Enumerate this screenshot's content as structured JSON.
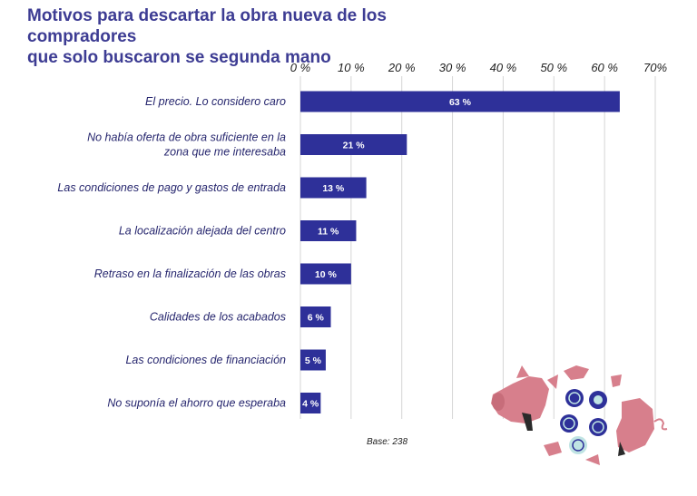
{
  "title_lines": [
    "Motivos para descartar la obra nueva de los compradores",
    "que solo buscaron se segunda mano"
  ],
  "footnote": "Base: 238",
  "colors": {
    "bar": "#2e3099",
    "title": "#3d3c93",
    "grid": "#d6d6d6",
    "illustration": "#d77f8c"
  },
  "chart_data": {
    "type": "bar",
    "orientation": "horizontal",
    "categories": [
      [
        "El precio. Lo considero caro"
      ],
      [
        "No había oferta de obra suficiente en la",
        "zona que me interesaba"
      ],
      [
        "Las condiciones de pago y gastos de entrada"
      ],
      [
        "La localización alejada del centro"
      ],
      [
        "Retraso en la finalización de las obras"
      ],
      [
        "Calidades de los acabados"
      ],
      [
        "Las condiciones de financiación"
      ],
      [
        "No suponía el ahorro que esperaba"
      ]
    ],
    "values": [
      63,
      21,
      13,
      11,
      10,
      6,
      5,
      4
    ],
    "value_labels": [
      "63 %",
      "21 %",
      "13 %",
      "11 %",
      "10 %",
      "6 %",
      "5 %",
      "4 %"
    ],
    "ticks": [
      0,
      10,
      20,
      30,
      40,
      50,
      60,
      70
    ],
    "tick_labels": [
      "0 %",
      "10 %",
      "20 %",
      "30 %",
      "40 %",
      "50 %",
      "60 %",
      "70%"
    ],
    "xlim": [
      0,
      70
    ],
    "axis_position": "top",
    "grid": true,
    "xlabel": "",
    "ylabel": ""
  }
}
